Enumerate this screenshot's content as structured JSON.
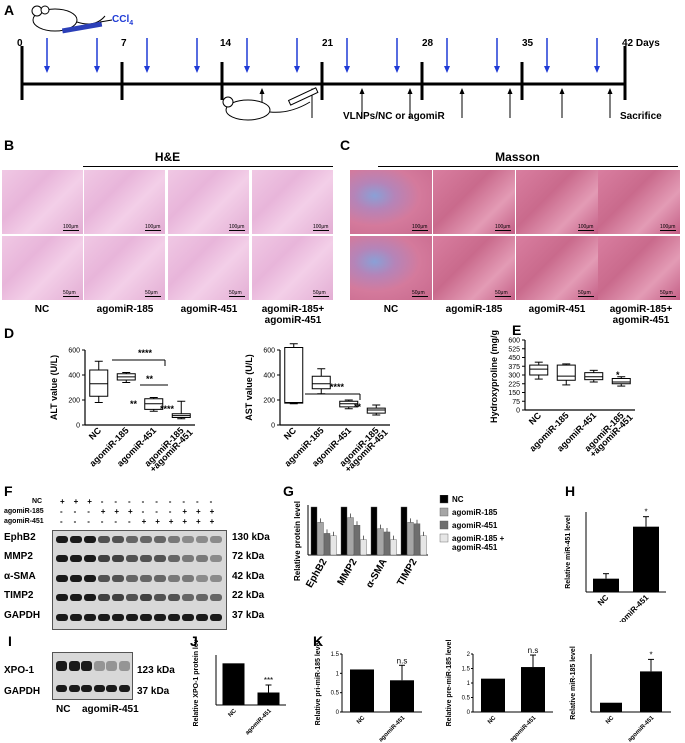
{
  "panels": {
    "A": "A",
    "B": "B",
    "C": "C",
    "D": "D",
    "E": "E",
    "F": "F",
    "G": "G",
    "H": "H",
    "I": "I",
    "J": "J",
    "K": "K"
  },
  "timeline": {
    "drug": "CCl",
    "drug_sub": "4",
    "days": [
      "0",
      "7",
      "14",
      "21",
      "28",
      "35",
      "42 Days"
    ],
    "treatment": "VLNPs/NC or agomiR",
    "end": "Sacrifice"
  },
  "histology": {
    "he_title": "H&E",
    "masson_title": "Masson",
    "scale_top": "100μm",
    "scale_bottom": "50μm",
    "groups": [
      "NC",
      "agomiR-185",
      "agomiR-451",
      "agomiR-185+\nagomiR-451"
    ]
  },
  "alt": {
    "ylabel": "ALT value (U/L)",
    "ticks": [
      "0",
      "200",
      "400",
      "600"
    ],
    "groups": [
      "NC",
      "agomiR-185",
      "agomiR-451",
      "agomiR-185\n+agomiR-451"
    ],
    "sig": [
      "****",
      "**",
      "**",
      "****"
    ]
  },
  "ast": {
    "ylabel": "AST value (U/L)",
    "ticks": [
      "0",
      "200",
      "400",
      "600"
    ],
    "groups": [
      "NC",
      "agomiR-185",
      "agomiR-451",
      "agomiR-185\n+agomiR-451"
    ],
    "sig": [
      "****",
      "**"
    ]
  },
  "hyp": {
    "ylabel": "Hydroxyproline\n(mg/g)",
    "ticks": [
      "0",
      "75",
      "150",
      "225",
      "300",
      "375",
      "450",
      "525",
      "600"
    ],
    "groups": [
      "NC",
      "agomiR-185",
      "agomiR-451",
      "agomiR-185\n+agomiR-451"
    ],
    "sig": "*"
  },
  "blot_f": {
    "row_labels": [
      "NC",
      "agomiR-185",
      "agomiR-451"
    ],
    "marks": [
      [
        "+",
        "+",
        "+",
        "-",
        "-",
        "-",
        "-",
        "-",
        "-",
        "-",
        "-",
        "-"
      ],
      [
        "-",
        "-",
        "-",
        "+",
        "+",
        "+",
        "-",
        "-",
        "-",
        "+",
        "+",
        "+"
      ],
      [
        "-",
        "-",
        "-",
        "-",
        "-",
        "-",
        "+",
        "+",
        "+",
        "+",
        "+",
        "+"
      ]
    ],
    "proteins": [
      "EphB2",
      "MMP2",
      "α-SMA",
      "TIMP2",
      "GAPDH"
    ],
    "kda": [
      "130 kDa",
      "72 kDa",
      "42 kDa",
      "22 kDa",
      "37 kDa"
    ]
  },
  "chart_data": [
    {
      "type": "bar",
      "title": "",
      "ylabel": "Relative protein level",
      "categories": [
        "EphB2",
        "MMP2",
        "α-SMA",
        "TIMP2"
      ],
      "ylim": [
        0,
        1.0
      ],
      "series": [
        {
          "name": "NC",
          "values": [
            1.0,
            1.0,
            1.0,
            1.0
          ]
        },
        {
          "name": "agomiR-185",
          "values": [
            0.68,
            0.78,
            0.55,
            0.68
          ]
        },
        {
          "name": "agomiR-451",
          "values": [
            0.45,
            0.62,
            0.48,
            0.65
          ]
        },
        {
          "name": "agomiR-185 + agomiR-451",
          "values": [
            0.4,
            0.32,
            0.32,
            0.4
          ]
        }
      ],
      "colors": [
        "#000000",
        "#a6a6a6",
        "#6e6e6e",
        "#e6e6e6"
      ]
    },
    {
      "type": "bar",
      "ylabel": "Relative miR-451 level",
      "categories": [
        "NC",
        "agomiR-451"
      ],
      "values": [
        1.0,
        4.9
      ],
      "ylim": [
        0,
        6
      ],
      "sig": [
        "",
        "*"
      ]
    },
    {
      "type": "bar",
      "ylabel": "Relative XPO-1 protein level",
      "categories": [
        "NC",
        "agomiR-451"
      ],
      "values": [
        1.0,
        0.3
      ],
      "ylim": [
        0,
        1.2
      ],
      "sig": [
        "",
        "***"
      ]
    },
    {
      "type": "bar",
      "ylabel": "Relative pri-miR-185 level",
      "categories": [
        "NC",
        "agomiR-451"
      ],
      "values": [
        1.1,
        0.82
      ],
      "ylim": [
        0,
        1.5
      ],
      "sig": [
        "",
        "n.s"
      ]
    },
    {
      "type": "bar",
      "ylabel": "Relative pre-miR-185 level",
      "categories": [
        "NC",
        "agomiR-451"
      ],
      "values": [
        1.15,
        1.55
      ],
      "ylim": [
        0,
        2.0
      ],
      "sig": [
        "",
        "n.s"
      ]
    },
    {
      "type": "bar",
      "ylabel": "Relative miR-185 level",
      "categories": [
        "NC",
        "agomiR-451"
      ],
      "values": [
        0.8,
        3.5
      ],
      "ylim": [
        0,
        5
      ],
      "sig": [
        "",
        "*"
      ]
    }
  ],
  "blot_i": {
    "proteins": [
      "XPO-1",
      "GAPDH"
    ],
    "kda": [
      "123 kDa",
      "37 kDa"
    ],
    "groups": [
      "NC",
      "agomiR-451"
    ]
  },
  "colors": {
    "arrow_blue": "#1f3bd6",
    "he_pink": "#ecbde0",
    "masson_red": "#cf7598",
    "grid_black": "#000000"
  }
}
